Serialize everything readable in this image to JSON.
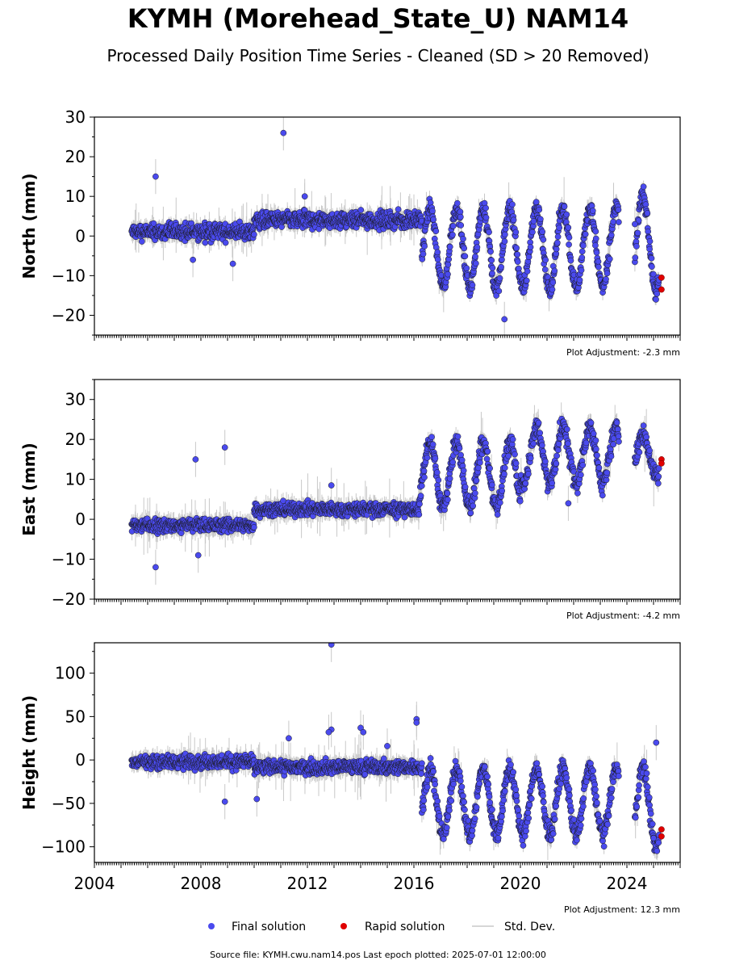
{
  "title": "KYMH (Morehead_State_U) NAM14",
  "subtitle": "Processed Daily Position Time Series - Cleaned (SD > 20 Removed)",
  "footer": "Source file: KYMH.cwu.nam14.pos  Last epoch plotted: 2025-07-01 12:00:00",
  "colors": {
    "final": "#4a4aee",
    "final_edge": "#1a1a1a",
    "rapid": "#e00000",
    "stddev": "#c8c8c8"
  },
  "legend": {
    "final": "Final solution",
    "rapid": "Rapid solution",
    "stddev": "Std. Dev."
  },
  "chart_data": [
    {
      "type": "scatter",
      "ylabel": "North (mm)",
      "annotation": "Plot Adjustment: -2.3 mm",
      "xlim": [
        2004,
        2026
      ],
      "ylim": [
        -25,
        30
      ],
      "yticks": [
        -20,
        -10,
        0,
        10,
        20,
        30
      ],
      "segments": [
        {
          "x": [
            2005.4,
            2010.0
          ],
          "mode": "flat",
          "mean": 1,
          "amp": 0,
          "noise": 1.8
        },
        {
          "x": [
            2010.0,
            2016.3
          ],
          "mode": "flat",
          "mean": 4,
          "amp": 0,
          "noise": 1.8
        },
        {
          "x": [
            2016.3,
            2023.7
          ],
          "mode": "season",
          "mean": -3,
          "amp": 10,
          "noise": 2.0
        },
        {
          "x": [
            2024.3,
            2025.2
          ],
          "mode": "season",
          "mean": -2,
          "amp": 12,
          "noise": 2.0
        }
      ],
      "outliers": [
        [
          2006.3,
          15
        ],
        [
          2011.1,
          26
        ],
        [
          2011.9,
          10
        ],
        [
          2009.2,
          -7
        ],
        [
          2019.4,
          -21
        ],
        [
          2024.3,
          3
        ],
        [
          2007.7,
          -6
        ]
      ],
      "rapid": [
        [
          2025.3,
          -10.5
        ],
        [
          2025.3,
          -13.5
        ]
      ]
    },
    {
      "type": "scatter",
      "ylabel": "East (mm)",
      "annotation": "Plot Adjustment: -4.2 mm",
      "xlim": [
        2004,
        2026
      ],
      "ylim": [
        -20,
        35
      ],
      "yticks": [
        -20,
        -10,
        0,
        10,
        20,
        30
      ],
      "segments": [
        {
          "x": [
            2005.4,
            2010.0
          ],
          "mode": "flat",
          "mean": -1.5,
          "amp": 0,
          "noise": 1.5
        },
        {
          "x": [
            2010.0,
            2016.2
          ],
          "mode": "flat",
          "mean": 2.5,
          "amp": 0,
          "noise": 1.5
        },
        {
          "x": [
            2016.2,
            2020.0
          ],
          "mode": "season",
          "mean": 11,
          "amp": 8,
          "noise": 2.2
        },
        {
          "x": [
            2020.0,
            2023.7
          ],
          "mode": "season",
          "mean": 16,
          "amp": 7,
          "noise": 2.2
        },
        {
          "x": [
            2024.3,
            2025.2
          ],
          "mode": "season",
          "mean": 16,
          "amp": 5,
          "noise": 2.0
        }
      ],
      "outliers": [
        [
          2006.3,
          -12
        ],
        [
          2007.8,
          15
        ],
        [
          2008.9,
          18
        ],
        [
          2012.9,
          8.5
        ],
        [
          2007.9,
          -9
        ],
        [
          2021.8,
          4
        ]
      ],
      "rapid": [
        [
          2025.3,
          15
        ],
        [
          2025.3,
          14
        ]
      ]
    },
    {
      "type": "scatter",
      "ylabel": "Height (mm)",
      "annotation": "Plot Adjustment: 12.3 mm",
      "xlim": [
        2004,
        2026
      ],
      "ylim": [
        -118,
        135
      ],
      "yticks": [
        -100,
        -50,
        0,
        50,
        100
      ],
      "segments": [
        {
          "x": [
            2005.4,
            2010.0
          ],
          "mode": "flat",
          "mean": -2,
          "amp": 0,
          "noise": 7
        },
        {
          "x": [
            2010.0,
            2016.3
          ],
          "mode": "flat",
          "mean": -8,
          "amp": 0,
          "noise": 7
        },
        {
          "x": [
            2016.3,
            2023.7
          ],
          "mode": "season",
          "mean": -48,
          "amp": 38,
          "noise": 9
        },
        {
          "x": [
            2024.3,
            2025.2
          ],
          "mode": "season",
          "mean": -55,
          "amp": 45,
          "noise": 10
        }
      ],
      "outliers": [
        [
          2012.9,
          133
        ],
        [
          2012.9,
          35
        ],
        [
          2012.8,
          32
        ],
        [
          2014.0,
          37
        ],
        [
          2014.1,
          32
        ],
        [
          2015.0,
          16
        ],
        [
          2016.1,
          47
        ],
        [
          2016.1,
          43
        ],
        [
          2010.1,
          -45
        ],
        [
          2008.9,
          -48
        ],
        [
          2011.3,
          25
        ],
        [
          2025.1,
          20
        ],
        [
          2025.0,
          -90
        ]
      ],
      "rapid": [
        [
          2025.3,
          -80
        ],
        [
          2025.3,
          -88
        ]
      ]
    }
  ],
  "x_tick_labels": [
    "2004",
    "2008",
    "2012",
    "2016",
    "2020",
    "2024"
  ],
  "x_tick_values": [
    2004,
    2008,
    2012,
    2016,
    2020,
    2024
  ]
}
